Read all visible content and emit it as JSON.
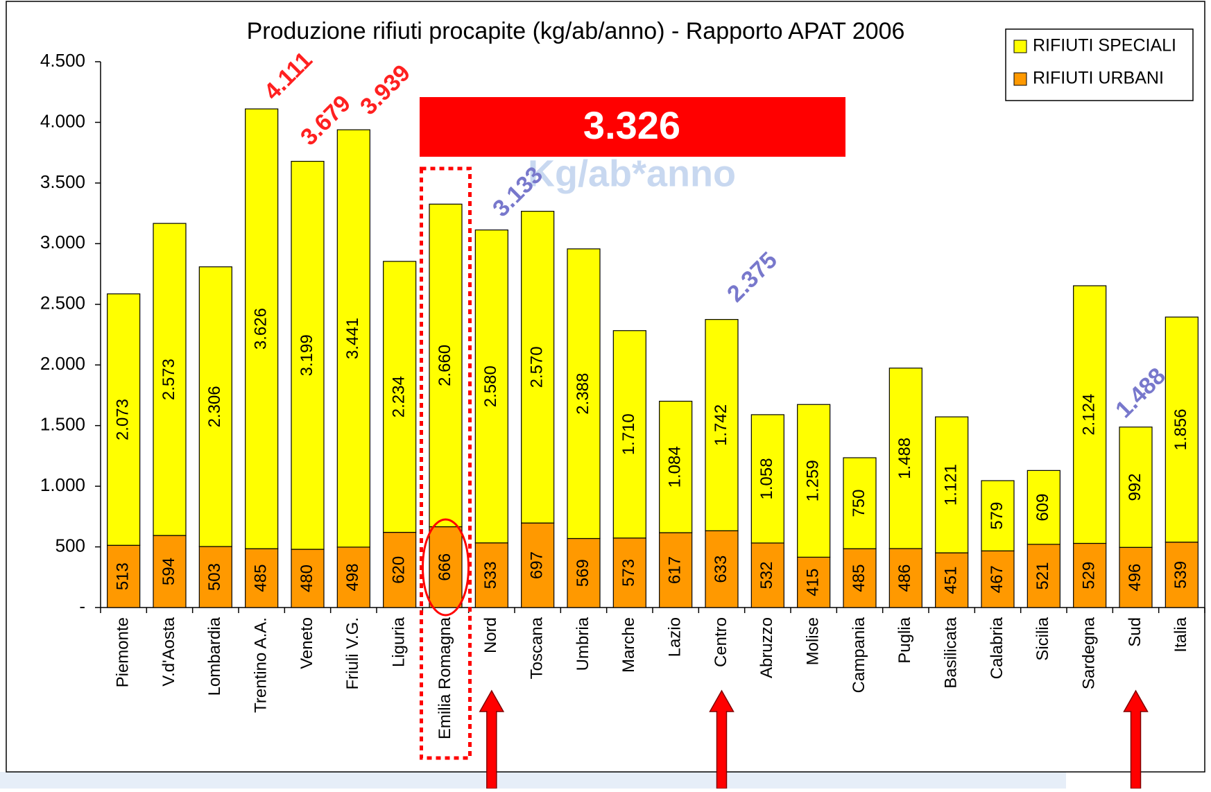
{
  "chart_data": {
    "type": "bar",
    "stacked": true,
    "title": "Produzione rifiuti procapite (kg/ab/anno) - Rapporto APAT 2006",
    "categories": [
      "Piemonte",
      "V.d'Aosta",
      "Lombardia",
      "Trentino A.A.",
      "Veneto",
      "Friuli V.G.",
      "Liguria",
      "Emilia Romagna",
      "Nord",
      "Toscana",
      "Umbria",
      "Marche",
      "Lazio",
      "Centro",
      "Abruzzo",
      "Molise",
      "Campania",
      "Puglia",
      "Basilicata",
      "Calabria",
      "Sicilia",
      "Sardegna",
      "Sud",
      "Italia"
    ],
    "series": [
      {
        "name": "RIFIUTI URBANI",
        "color": "#ff9900",
        "values": [
          513,
          594,
          503,
          485,
          480,
          498,
          620,
          666,
          533,
          697,
          569,
          573,
          617,
          633,
          532,
          415,
          485,
          486,
          451,
          467,
          521,
          529,
          496,
          539
        ]
      },
      {
        "name": "RIFIUTI SPECIALI",
        "color": "#ffff00",
        "values": [
          2073,
          2573,
          2306,
          3626,
          3199,
          3441,
          2234,
          2660,
          2580,
          2570,
          2388,
          1710,
          1084,
          1742,
          1058,
          1259,
          750,
          1488,
          1121,
          579,
          609,
          2124,
          992,
          1856
        ],
        "value_labels": [
          "2.073",
          "2.573",
          "2.306",
          "3.626",
          "3.199",
          "3.441",
          "2.234",
          "2.660",
          "2.580",
          "2.570",
          "2.388",
          "1.710",
          "1.084",
          "1.742",
          "1.058",
          "1.259",
          "750",
          "1.488",
          "1.121",
          "579",
          "609",
          "2.124",
          "992",
          "1.856"
        ]
      }
    ],
    "legend_order": [
      "RIFIUTI SPECIALI",
      "RIFIUTI URBANI"
    ],
    "legend": "upper right",
    "ylim": [
      0,
      4500
    ],
    "yticks": [
      {
        "value": 0,
        "label": "-"
      },
      500,
      {
        "value": 1000,
        "label": "1.000"
      },
      {
        "value": 1500,
        "label": "1.500"
      },
      {
        "value": 2000,
        "label": "2.000"
      },
      {
        "value": 2500,
        "label": "2.500"
      },
      {
        "value": 3000,
        "label": "3.000"
      },
      {
        "value": 3500,
        "label": "3.500"
      },
      {
        "value": 4000,
        "label": "4.000"
      },
      {
        "value": 4500,
        "label": "4.500"
      }
    ],
    "grid": false,
    "annotations": [
      {
        "text": "4.111",
        "color": "#ff2020"
      },
      {
        "text": "3.679",
        "color": "#ff2020"
      },
      {
        "text": "3.939",
        "color": "#ff2020"
      },
      {
        "text": "3.133",
        "color": "#7878cc"
      },
      {
        "text": "2.375",
        "color": "#7878cc"
      },
      {
        "text": "1.488",
        "color": "#7878cc"
      }
    ],
    "highlight": {
      "value": "3.326",
      "unit": "Kg/ab*anno"
    }
  }
}
